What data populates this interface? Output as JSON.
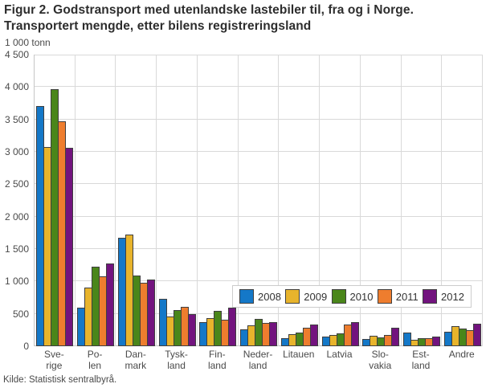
{
  "header": {
    "title": "Figur 2. Godstransport med utenlandske lastebiler til, fra og i Norge.\nTransportert mengde, etter bilens registreringsland",
    "unit_label": "1 000 tonn"
  },
  "footer": {
    "source": "Kilde: Statistisk sentralbyrå."
  },
  "chart_data": {
    "type": "bar",
    "title": "Figur 2. Godstransport med utenlandske lastebiler til, fra og i Norge. Transportert mengde, etter bilens registreringsland",
    "ylabel": "1 000 tonn",
    "xlabel": "",
    "ylim": [
      0,
      4500
    ],
    "ytick_step": 500,
    "ytick_labels": [
      "0",
      "500",
      "1 000",
      "1 500",
      "2 000",
      "2 500",
      "3 000",
      "3 500",
      "4 000",
      "4 500"
    ],
    "grid": true,
    "legend_position": "inside-bottom-right",
    "categories": [
      "Sve-\nrige",
      "Po-\nlen",
      "Dan-\nmark",
      "Tysk-\nland",
      "Fin-\nland",
      "Neder-\nland",
      "Litauen",
      "Latvia",
      "Slo-\nvakia",
      "Est-\nland",
      "Andre"
    ],
    "series": [
      {
        "name": "2008",
        "color": "#1478C8",
        "values": [
          3710,
          600,
          1675,
          730,
          370,
          260,
          120,
          150,
          115,
          205,
          220
        ]
      },
      {
        "name": "2009",
        "color": "#E8B42C",
        "values": [
          3075,
          910,
          1720,
          455,
          435,
          320,
          180,
          170,
          160,
          95,
          305
        ]
      },
      {
        "name": "2010",
        "color": "#4A861A",
        "values": [
          3970,
          1225,
          1090,
          560,
          550,
          420,
          215,
          195,
          140,
          120,
          270
        ]
      },
      {
        "name": "2011",
        "color": "#EE7D2E",
        "values": [
          3475,
          1075,
          980,
          605,
          405,
          365,
          280,
          340,
          170,
          130,
          250
        ]
      },
      {
        "name": "2012",
        "color": "#72137E",
        "values": [
          3065,
          1275,
          1030,
          490,
          600,
          375,
          340,
          375,
          280,
          145,
          345
        ]
      }
    ]
  }
}
